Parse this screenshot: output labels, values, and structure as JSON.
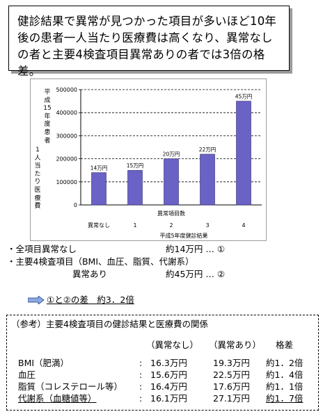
{
  "headline": "健診結果で異常が見つかった項目が多いほど10年後の患者一人当たり医療費は高くなり、異常なしの者と主要4検査項目異常ありの者では3倍の格差。",
  "chart_data": {
    "type": "bar",
    "title": "",
    "ylabel": "平成15年度患者1人当たり医療費",
    "xlabel": "異常項目数",
    "x_title2": "平成5年度健診結果",
    "categories": [
      "異常なし",
      "1",
      "2",
      "3",
      "4"
    ],
    "values": [
      140000,
      150000,
      200000,
      220000,
      450000
    ],
    "data_labels": [
      "14万円",
      "15万円",
      "20万円",
      "22万円",
      "45万円"
    ],
    "yticks": [
      "0",
      "100000",
      "200000",
      "300000",
      "400000",
      "500000"
    ],
    "ylim": [
      0,
      500000
    ],
    "grid": true,
    "bar_color": "#6b62c6"
  },
  "notes": {
    "line1_label": "・全項目異常なし",
    "line1_value": "約14万円 … ①",
    "line2_label": "・主要4検査項目（BMI、血圧、脂質、代謝系）",
    "line3_label": "異常あり",
    "line3_value": "約45万円 … ②"
  },
  "diff": "①と②の差　約3．2倍",
  "reference": {
    "title": "（参考）主要4検査項目の健診結果と医療費の関係",
    "headers": [
      "（異常なし）",
      "（異常あり）",
      "格差"
    ],
    "rows": [
      {
        "name": "BMI（肥満）",
        "colon": ":",
        "normal": "16.3万円",
        "abnormal": "19.3万円",
        "ratio": "約1．2倍"
      },
      {
        "name": "血圧",
        "colon": ":",
        "normal": "15.6万円",
        "abnormal": "22.5万円",
        "ratio": "約1．4倍"
      },
      {
        "name": "脂質（コレステロール等）",
        "colon": ":",
        "normal": "16.4万円",
        "abnormal": "17.6万円",
        "ratio": "約1．1倍"
      },
      {
        "name": "代謝系（血糖値等）",
        "colon": ":",
        "normal": "16.1万円",
        "abnormal": "27.1万円",
        "ratio": "約1．7倍"
      }
    ]
  }
}
